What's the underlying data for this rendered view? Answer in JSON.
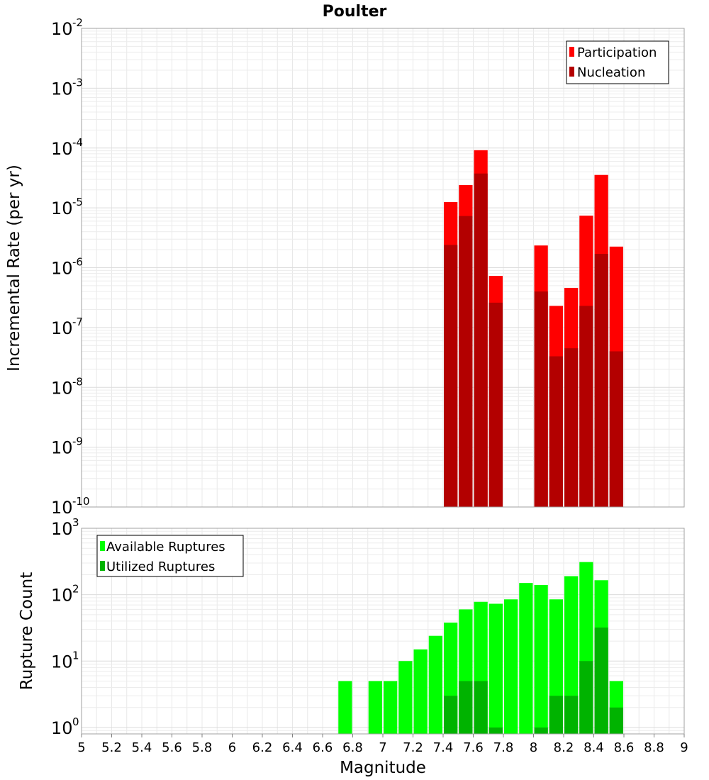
{
  "chart_data": [
    {
      "type": "bar",
      "title": "Poulter",
      "xlabel": "Magnitude",
      "ylabel": "Incremental Rate (per yr)",
      "yscale": "log",
      "xlim": [
        5,
        9
      ],
      "ylim": [
        1e-10,
        0.01
      ],
      "grid": true,
      "legend_position": "top-right",
      "y_tick_labels": [
        {
          "base": "10",
          "exp": "-10"
        },
        {
          "base": "10",
          "exp": "-9"
        },
        {
          "base": "10",
          "exp": "-8"
        },
        {
          "base": "10",
          "exp": "-7"
        },
        {
          "base": "10",
          "exp": "-6"
        },
        {
          "base": "10",
          "exp": "-5"
        },
        {
          "base": "10",
          "exp": "-4"
        },
        {
          "base": "10",
          "exp": "-3"
        },
        {
          "base": "10",
          "exp": "-2"
        }
      ],
      "x": [
        7.45,
        7.55,
        7.65,
        7.75,
        7.85,
        7.95,
        8.05,
        8.15,
        8.25,
        8.35,
        8.45,
        8.55
      ],
      "series": [
        {
          "name": "Participation",
          "color": "#ff0000",
          "values": [
            1.25e-05,
            2.4e-05,
            9.2e-05,
            7.3e-07,
            null,
            null,
            2.35e-06,
            2.3e-07,
            4.6e-07,
            7.4e-06,
            3.55e-05,
            2.25e-06
          ]
        },
        {
          "name": "Nucleation",
          "color": "#b30000",
          "values": [
            2.4e-06,
            7.3e-06,
            3.75e-05,
            2.6e-07,
            null,
            null,
            4e-07,
            3.3e-08,
            4.5e-08,
            2.3e-07,
            1.7e-06,
            4e-08
          ]
        }
      ]
    },
    {
      "type": "bar",
      "xlabel": "Magnitude",
      "ylabel": "Rupture Count",
      "yscale": "log",
      "xlim": [
        5,
        9
      ],
      "ylim": [
        0.8,
        1000
      ],
      "grid": true,
      "legend_position": "top-left",
      "y_tick_labels": [
        {
          "base": "10",
          "exp": "0",
          "value": 1
        },
        {
          "base": "10",
          "exp": "1",
          "value": 10
        },
        {
          "base": "10",
          "exp": "2",
          "value": 100
        },
        {
          "base": "10",
          "exp": "3",
          "value": 1000
        }
      ],
      "x_tick_labels": [
        "5",
        "5.2",
        "5.4",
        "5.6",
        "5.8",
        "6",
        "6.2",
        "6.4",
        "6.6",
        "6.8",
        "7",
        "7.2",
        "7.4",
        "7.6",
        "7.8",
        "8",
        "8.2",
        "8.4",
        "8.6",
        "8.8",
        "9"
      ],
      "x": [
        6.75,
        6.85,
        6.95,
        7.05,
        7.15,
        7.25,
        7.35,
        7.45,
        7.55,
        7.65,
        7.75,
        7.85,
        7.95,
        8.05,
        8.15,
        8.25,
        8.35,
        8.45,
        8.55
      ],
      "series": [
        {
          "name": "Available Ruptures",
          "color": "#00ff00",
          "values": [
            5,
            null,
            5,
            5,
            10,
            15,
            24,
            38,
            60,
            78,
            73,
            85,
            150,
            140,
            85,
            190,
            310,
            165,
            5
          ]
        },
        {
          "name": "Utilized Ruptures",
          "color": "#00b300",
          "values": [
            null,
            null,
            null,
            null,
            null,
            null,
            null,
            3,
            5,
            5,
            1,
            null,
            null,
            1,
            3,
            3,
            10,
            32,
            2
          ]
        }
      ]
    }
  ]
}
